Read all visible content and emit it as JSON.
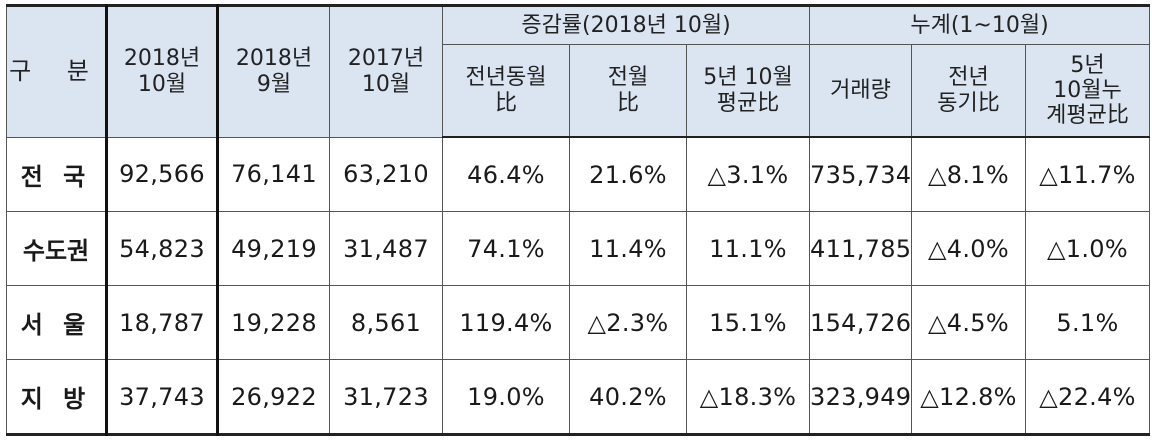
{
  "table": {
    "header": {
      "category": "구 분",
      "col_2018_10": [
        "2018년",
        "10월"
      ],
      "col_2018_09": [
        "2018년",
        "9월"
      ],
      "col_2017_10": [
        "2017년",
        "10월"
      ],
      "group_rate": "증감률(2018년 10월)",
      "rate_yoy": [
        "전년동월",
        "比"
      ],
      "rate_mom": [
        "전월",
        "比"
      ],
      "rate_5yr": [
        "5년 10월",
        "평균比"
      ],
      "group_cum": "누계(1~10월)",
      "cum_volume": "거래량",
      "cum_yoy": [
        "전년",
        "동기比"
      ],
      "cum_5yr": [
        "5년",
        "10월누",
        "계평균比"
      ]
    },
    "rows": [
      {
        "label": "전 국",
        "v2018_10": "92,566",
        "v2018_09": "76,141",
        "v2017_10": "63,210",
        "yoy": "46.4%",
        "mom": "21.6%",
        "avg5": "△3.1%",
        "cum": "735,734",
        "cum_yoy": "△8.1%",
        "cum_avg5": "△11.7%"
      },
      {
        "label": "수도권",
        "v2018_10": "54,823",
        "v2018_09": "49,219",
        "v2017_10": "31,487",
        "yoy": "74.1%",
        "mom": "11.4%",
        "avg5": "11.1%",
        "cum": "411,785",
        "cum_yoy": "△4.0%",
        "cum_avg5": "△1.0%"
      },
      {
        "label": "서 울",
        "v2018_10": "18,787",
        "v2018_09": "19,228",
        "v2017_10": "8,561",
        "yoy": "119.4%",
        "mom": "△2.3%",
        "avg5": "15.1%",
        "cum": "154,726",
        "cum_yoy": "△4.5%",
        "cum_avg5": "5.1%"
      },
      {
        "label": "지 방",
        "v2018_10": "37,743",
        "v2018_09": "26,922",
        "v2017_10": "31,723",
        "yoy": "19.0%",
        "mom": "40.2%",
        "avg5": "△18.3%",
        "cum": "323,949",
        "cum_yoy": "△12.8%",
        "cum_avg5": "△22.4%"
      }
    ]
  }
}
